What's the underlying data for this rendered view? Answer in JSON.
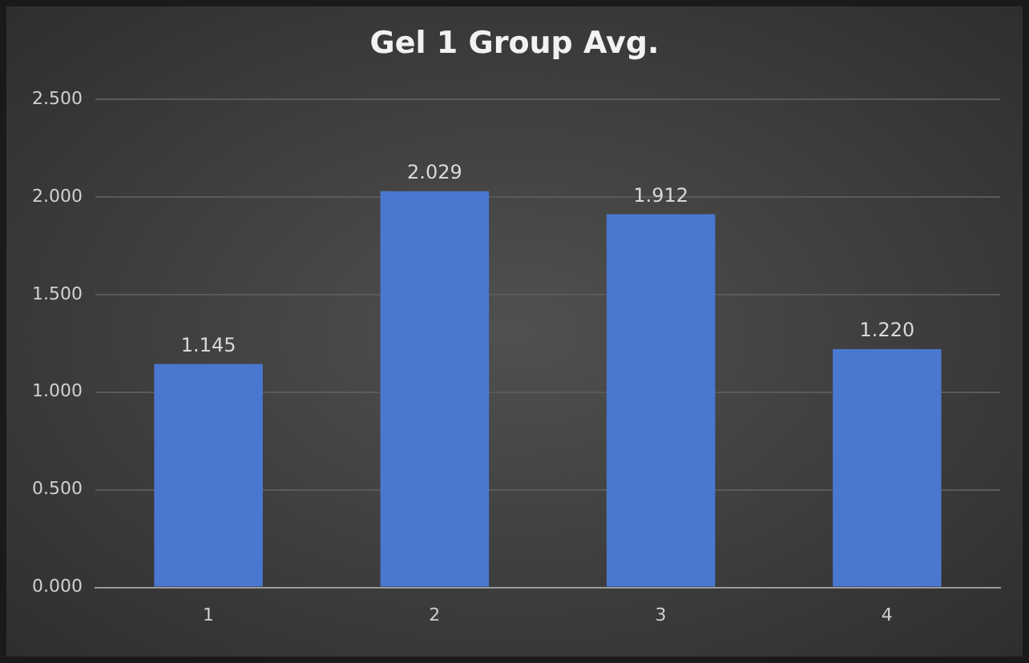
{
  "chart_data": {
    "type": "bar",
    "title": "Gel 1 Group Avg.",
    "categories": [
      "1",
      "2",
      "3",
      "4"
    ],
    "values": [
      1.145,
      2.029,
      1.912,
      1.22
    ],
    "value_labels": [
      "1.145",
      "2.029",
      "1.912",
      "1.220"
    ],
    "color": "#4a78d0",
    "ylim": [
      0,
      2.5
    ],
    "yticks": [
      {
        "value": 0,
        "label": "0.000"
      },
      {
        "value": 0.5,
        "label": "0.500"
      },
      {
        "value": 1,
        "label": "1.000"
      },
      {
        "value": 1.5,
        "label": "1.500"
      },
      {
        "value": 2,
        "label": "2.000"
      },
      {
        "value": 2.5,
        "label": "2.500"
      }
    ],
    "grid": "y",
    "legend": false
  }
}
